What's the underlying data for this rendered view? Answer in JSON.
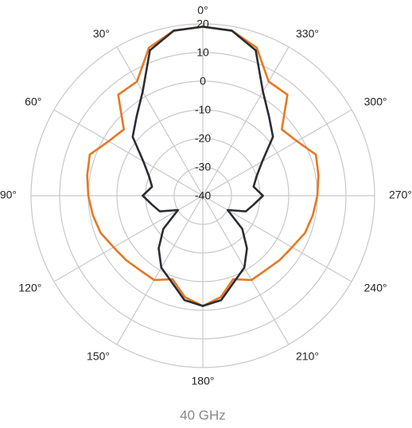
{
  "chart_data": {
    "type": "polar",
    "title": "40 GHz",
    "x": [
      0,
      10,
      20,
      30,
      40,
      50,
      60,
      70,
      80,
      90,
      100,
      110,
      120,
      130,
      140,
      150,
      160,
      170,
      180,
      190,
      200,
      210,
      220,
      230,
      240,
      250,
      260,
      270,
      280,
      290,
      300,
      310,
      320,
      330,
      340,
      350
    ],
    "series": [
      {
        "color": "#e87722",
        "values": [
          19,
          18.5,
          15,
          6,
          6,
          -4,
          -2,
          2,
          1,
          0,
          -1,
          -2,
          -4,
          -5,
          -6,
          -6,
          -9,
          -4,
          -1.5,
          -4,
          -9,
          -6,
          -6,
          -5,
          -4,
          -2,
          -1,
          0,
          1,
          2,
          -2,
          -4,
          6,
          6,
          15,
          18.5
        ]
      },
      {
        "color": "#2b2d33",
        "values": [
          19,
          18.5,
          14,
          2,
          -4,
          -8,
          -16,
          -20,
          -22,
          -19,
          -22,
          -24,
          -30,
          -22,
          -16,
          -11,
          -8,
          -3,
          -1.5,
          -3,
          -8,
          -11,
          -16,
          -22,
          -30,
          -24,
          -22,
          -19,
          -22,
          -20,
          -16,
          -8,
          -4,
          2,
          14,
          18.5
        ]
      }
    ],
    "rlim": [
      -40,
      20
    ],
    "rticks": [
      -40,
      -30,
      -20,
      -10,
      0,
      10,
      20
    ],
    "thetaticks": [
      {
        "value": 0,
        "label": "0°"
      },
      {
        "value": 30,
        "label": "30°"
      },
      {
        "value": 60,
        "label": "60°"
      },
      {
        "value": 90,
        "label": "90°"
      },
      {
        "value": 120,
        "label": "120°"
      },
      {
        "value": 150,
        "label": "150°"
      },
      {
        "value": 180,
        "label": "180°"
      },
      {
        "value": 210,
        "label": "210°"
      },
      {
        "value": 240,
        "label": "240°"
      },
      {
        "value": 270,
        "label": "270°"
      },
      {
        "value": 300,
        "label": "300°"
      },
      {
        "value": 330,
        "label": "330°"
      }
    ],
    "direction": "counterclockwise",
    "grid": true
  }
}
